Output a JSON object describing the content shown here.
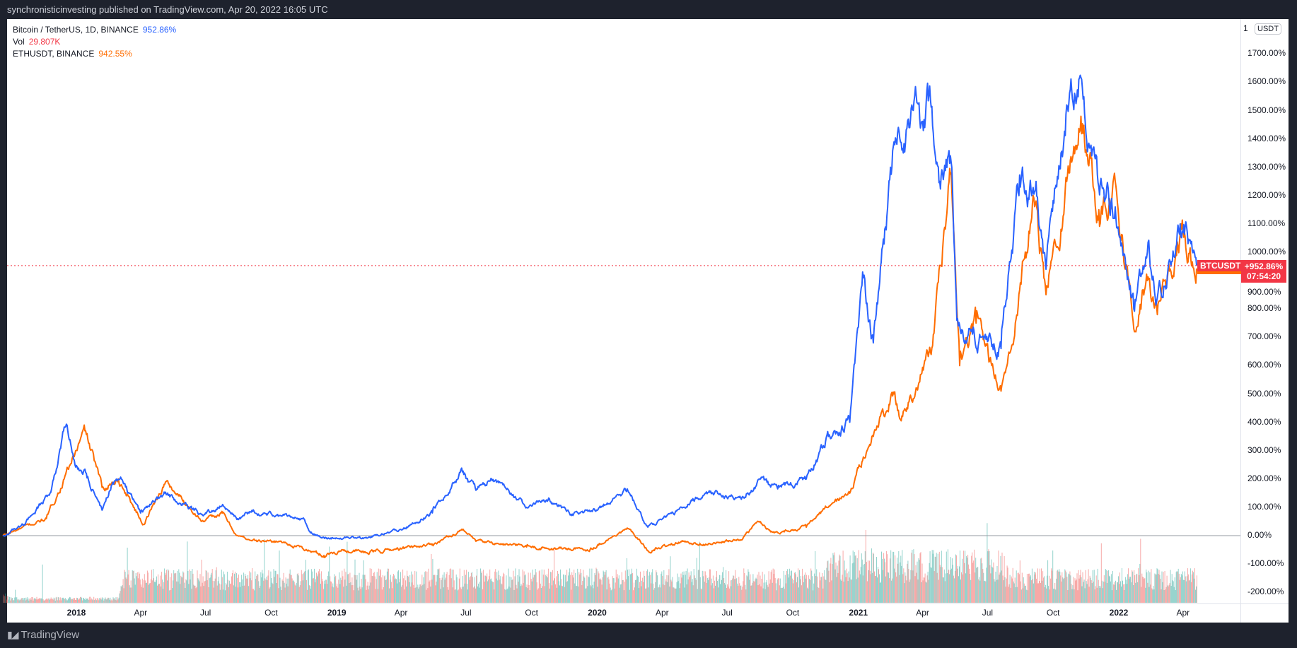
{
  "header": {
    "text": "synchronisticinvesting published on TradingView.com, Apr 20, 2022 16:05 UTC"
  },
  "legend": {
    "btc_label": "Bitcoin / TetherUS, 1D, BINANCE",
    "btc_value": "952.86%",
    "vol_label": "Vol",
    "vol_value": "29.807K",
    "eth_label": "ETHUSDT, BINANCE",
    "eth_value": "942.55%"
  },
  "axis": {
    "unit_button": "USDT",
    "top_partial": "1"
  },
  "price_label": {
    "symbol": "BTCUSDT",
    "value": "+952.86%",
    "countdown": "07:54:20"
  },
  "footer": {
    "logo": "TradingView",
    "logo_mark": "17"
  },
  "colors": {
    "btc": "#2962ff",
    "eth": "#ff6d00",
    "up": "#26a69a",
    "down": "#ef5350",
    "price_line": "#f23645"
  },
  "chart_data": {
    "type": "line",
    "title": "BTCUSDT vs ETHUSDT (percent change)",
    "ylim": [
      -230,
      1800
    ],
    "y_ticks": [
      "1700.00%",
      "1600.00%",
      "1500.00%",
      "1400.00%",
      "1300.00%",
      "1200.00%",
      "1100.00%",
      "1000.00%",
      "900.00%",
      "800.00%",
      "700.00%",
      "600.00%",
      "500.00%",
      "400.00%",
      "300.00%",
      "200.00%",
      "100.00%",
      "0.00%",
      "-100.00%",
      "-200.00%"
    ],
    "y_tick_values": [
      1700,
      1600,
      1500,
      1400,
      1300,
      1200,
      1100,
      1000,
      900,
      800,
      700,
      600,
      500,
      400,
      300,
      200,
      100,
      0,
      -100,
      -200
    ],
    "x_ticks": [
      {
        "label": "2018",
        "date": "2018-01-01",
        "year": true
      },
      {
        "label": "Apr",
        "date": "2018-04-01"
      },
      {
        "label": "Jul",
        "date": "2018-07-01"
      },
      {
        "label": "Oct",
        "date": "2018-10-01"
      },
      {
        "label": "2019",
        "date": "2019-01-01",
        "year": true
      },
      {
        "label": "Apr",
        "date": "2019-04-01"
      },
      {
        "label": "Jul",
        "date": "2019-07-01"
      },
      {
        "label": "Oct",
        "date": "2019-10-01"
      },
      {
        "label": "2020",
        "date": "2020-01-01",
        "year": true
      },
      {
        "label": "Apr",
        "date": "2020-04-01"
      },
      {
        "label": "Jul",
        "date": "2020-07-01"
      },
      {
        "label": "Oct",
        "date": "2020-10-01"
      },
      {
        "label": "2021",
        "date": "2021-01-01",
        "year": true
      },
      {
        "label": "Apr",
        "date": "2021-04-01"
      },
      {
        "label": "Jul",
        "date": "2021-07-01"
      },
      {
        "label": "Oct",
        "date": "2021-10-01"
      },
      {
        "label": "2022",
        "date": "2022-01-01",
        "year": true
      },
      {
        "label": "Apr",
        "date": "2022-04-01"
      }
    ],
    "current_value": 952.86,
    "series": [
      {
        "name": "Bitcoin / TetherUS",
        "color": "#2962ff",
        "points": [
          [
            "2017-09-20",
            0
          ],
          [
            "2017-10-20",
            40
          ],
          [
            "2017-11-25",
            150
          ],
          [
            "2017-12-17",
            385
          ],
          [
            "2017-12-30",
            250
          ],
          [
            "2018-01-15",
            220
          ],
          [
            "2018-02-06",
            90
          ],
          [
            "2018-02-20",
            180
          ],
          [
            "2018-03-05",
            200
          ],
          [
            "2018-04-01",
            80
          ],
          [
            "2018-05-05",
            150
          ],
          [
            "2018-06-28",
            70
          ],
          [
            "2018-07-25",
            110
          ],
          [
            "2018-08-15",
            60
          ],
          [
            "2018-09-05",
            85
          ],
          [
            "2018-10-15",
            70
          ],
          [
            "2018-11-14",
            60
          ],
          [
            "2018-11-25",
            10
          ],
          [
            "2018-12-15",
            -10
          ],
          [
            "2019-01-15",
            -5
          ],
          [
            "2019-02-08",
            -8
          ],
          [
            "2019-04-02",
            20
          ],
          [
            "2019-05-15",
            80
          ],
          [
            "2019-06-26",
            225
          ],
          [
            "2019-07-15",
            160
          ],
          [
            "2019-08-06",
            200
          ],
          [
            "2019-09-24",
            100
          ],
          [
            "2019-10-26",
            130
          ],
          [
            "2019-11-25",
            75
          ],
          [
            "2019-12-31",
            90
          ],
          [
            "2020-02-12",
            165
          ],
          [
            "2020-03-12",
            30
          ],
          [
            "2020-04-30",
            100
          ],
          [
            "2020-06-01",
            150
          ],
          [
            "2020-07-27",
            135
          ],
          [
            "2020-08-17",
            200
          ],
          [
            "2020-09-10",
            165
          ],
          [
            "2020-10-20",
            200
          ],
          [
            "2020-11-20",
            350
          ],
          [
            "2020-12-20",
            400
          ],
          [
            "2021-01-08",
            910
          ],
          [
            "2021-01-22",
            680
          ],
          [
            "2021-02-21",
            1380
          ],
          [
            "2021-03-13",
            1440
          ],
          [
            "2021-04-14",
            1515
          ],
          [
            "2021-04-25",
            1250
          ],
          [
            "2021-05-12",
            1300
          ],
          [
            "2021-05-19",
            760
          ],
          [
            "2021-06-22",
            700
          ],
          [
            "2021-07-20",
            660
          ],
          [
            "2021-08-14",
            1200
          ],
          [
            "2021-09-07",
            1250
          ],
          [
            "2021-09-21",
            940
          ],
          [
            "2021-10-20",
            1520
          ],
          [
            "2021-11-10",
            1610
          ],
          [
            "2021-12-04",
            1230
          ],
          [
            "2021-12-27",
            1160
          ],
          [
            "2022-01-22",
            800
          ],
          [
            "2022-02-10",
            1000
          ],
          [
            "2022-02-24",
            840
          ],
          [
            "2022-03-28",
            1100
          ],
          [
            "2022-04-20",
            953
          ]
        ]
      },
      {
        "name": "ETHUSDT",
        "color": "#ff6d00",
        "points": [
          [
            "2017-09-20",
            0
          ],
          [
            "2017-11-20",
            60
          ],
          [
            "2017-12-15",
            200
          ],
          [
            "2018-01-13",
            370
          ],
          [
            "2018-02-06",
            170
          ],
          [
            "2018-03-01",
            200
          ],
          [
            "2018-04-05",
            40
          ],
          [
            "2018-05-06",
            190
          ],
          [
            "2018-06-28",
            50
          ],
          [
            "2018-07-25",
            80
          ],
          [
            "2018-08-14",
            0
          ],
          [
            "2018-09-12",
            -20
          ],
          [
            "2018-10-15",
            -20
          ],
          [
            "2018-11-25",
            -55
          ],
          [
            "2018-12-14",
            -70
          ],
          [
            "2019-01-10",
            -50
          ],
          [
            "2019-02-08",
            -60
          ],
          [
            "2019-04-05",
            -45
          ],
          [
            "2019-05-15",
            -30
          ],
          [
            "2019-06-26",
            20
          ],
          [
            "2019-07-15",
            -20
          ],
          [
            "2019-09-24",
            -40
          ],
          [
            "2019-12-18",
            -50
          ],
          [
            "2020-02-14",
            25
          ],
          [
            "2020-03-13",
            -55
          ],
          [
            "2020-04-30",
            -20
          ],
          [
            "2020-06-01",
            -30
          ],
          [
            "2020-07-20",
            -15
          ],
          [
            "2020-08-14",
            50
          ],
          [
            "2020-09-05",
            10
          ],
          [
            "2020-10-20",
            30
          ],
          [
            "2020-11-24",
            110
          ],
          [
            "2020-12-20",
            150
          ],
          [
            "2021-01-20",
            350
          ],
          [
            "2021-02-20",
            500
          ],
          [
            "2021-03-01",
            410
          ],
          [
            "2021-04-15",
            670
          ],
          [
            "2021-05-11",
            1280
          ],
          [
            "2021-05-23",
            600
          ],
          [
            "2021-06-15",
            750
          ],
          [
            "2021-07-20",
            510
          ],
          [
            "2021-08-25",
            1000
          ],
          [
            "2021-09-03",
            1200
          ],
          [
            "2021-09-21",
            850
          ],
          [
            "2021-10-20",
            1250
          ],
          [
            "2021-11-09",
            1480
          ],
          [
            "2021-12-04",
            1150
          ],
          [
            "2021-12-27",
            1250
          ],
          [
            "2022-01-22",
            730
          ],
          [
            "2022-02-10",
            900
          ],
          [
            "2022-02-24",
            780
          ],
          [
            "2022-03-30",
            1080
          ],
          [
            "2022-04-20",
            943
          ]
        ]
      }
    ],
    "volume": {
      "name": "Vol",
      "last": "29.807K"
    }
  }
}
